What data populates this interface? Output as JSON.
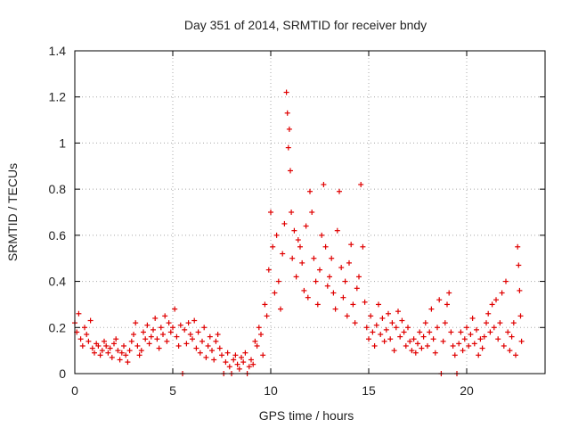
{
  "chart_data": {
    "type": "scatter",
    "title": "Day 351 of 2014, SRMTID for receiver bndy",
    "xlabel": "GPS time / hours",
    "ylabel": "SRMTID / TECUs",
    "xlim": [
      0,
      24
    ],
    "ylim": [
      0,
      1.4
    ],
    "xticks": [
      0,
      5,
      10,
      15,
      20
    ],
    "yticks": [
      0,
      0.2,
      0.4,
      0.6,
      0.8,
      1,
      1.2,
      1.4
    ],
    "xtick_labels": [
      "0",
      "5",
      "10",
      "15",
      "20"
    ],
    "ytick_labels": [
      "0",
      "0.2",
      "0.4",
      "0.6",
      "0.8",
      "1",
      "1.2",
      "1.4"
    ],
    "grid": true,
    "marker": "+",
    "color": "#e00000",
    "series": [
      {
        "name": "SRMTID",
        "points": [
          [
            0.0,
            0.22
          ],
          [
            0.1,
            0.18
          ],
          [
            0.2,
            0.26
          ],
          [
            0.3,
            0.15
          ],
          [
            0.4,
            0.12
          ],
          [
            0.5,
            0.2
          ],
          [
            0.6,
            0.17
          ],
          [
            0.7,
            0.14
          ],
          [
            0.8,
            0.23
          ],
          [
            0.9,
            0.11
          ],
          [
            1.0,
            0.09
          ],
          [
            1.1,
            0.13
          ],
          [
            1.2,
            0.12
          ],
          [
            1.3,
            0.08
          ],
          [
            1.4,
            0.1
          ],
          [
            1.5,
            0.14
          ],
          [
            1.6,
            0.12
          ],
          [
            1.7,
            0.09
          ],
          [
            1.8,
            0.11
          ],
          [
            1.9,
            0.07
          ],
          [
            2.0,
            0.13
          ],
          [
            2.1,
            0.15
          ],
          [
            2.2,
            0.1
          ],
          [
            2.3,
            0.06
          ],
          [
            2.4,
            0.09
          ],
          [
            2.5,
            0.12
          ],
          [
            2.6,
            0.08
          ],
          [
            2.7,
            0.05
          ],
          [
            2.8,
            0.1
          ],
          [
            2.9,
            0.14
          ],
          [
            3.0,
            0.17
          ],
          [
            3.1,
            0.22
          ],
          [
            3.2,
            0.12
          ],
          [
            3.3,
            0.08
          ],
          [
            3.4,
            0.1
          ],
          [
            3.5,
            0.18
          ],
          [
            3.6,
            0.15
          ],
          [
            3.7,
            0.21
          ],
          [
            3.8,
            0.13
          ],
          [
            3.9,
            0.16
          ],
          [
            4.0,
            0.19
          ],
          [
            4.1,
            0.24
          ],
          [
            4.2,
            0.15
          ],
          [
            4.3,
            0.11
          ],
          [
            4.4,
            0.2
          ],
          [
            4.5,
            0.17
          ],
          [
            4.6,
            0.25
          ],
          [
            4.7,
            0.14
          ],
          [
            4.8,
            0.22
          ],
          [
            4.9,
            0.18
          ],
          [
            5.0,
            0.2
          ],
          [
            5.1,
            0.28
          ],
          [
            5.2,
            0.16
          ],
          [
            5.3,
            0.12
          ],
          [
            5.4,
            0.21
          ],
          [
            5.5,
            0.0
          ],
          [
            5.6,
            0.19
          ],
          [
            5.7,
            0.13
          ],
          [
            5.8,
            0.22
          ],
          [
            5.9,
            0.17
          ],
          [
            6.0,
            0.15
          ],
          [
            6.1,
            0.23
          ],
          [
            6.2,
            0.11
          ],
          [
            6.3,
            0.18
          ],
          [
            6.4,
            0.09
          ],
          [
            6.5,
            0.14
          ],
          [
            6.6,
            0.2
          ],
          [
            6.7,
            0.07
          ],
          [
            6.8,
            0.12
          ],
          [
            6.9,
            0.16
          ],
          [
            7.0,
            0.1
          ],
          [
            7.1,
            0.06
          ],
          [
            7.2,
            0.14
          ],
          [
            7.3,
            0.17
          ],
          [
            7.4,
            0.11
          ],
          [
            7.5,
            0.08
          ],
          [
            7.6,
            0.0
          ],
          [
            7.7,
            0.05
          ],
          [
            7.8,
            0.09
          ],
          [
            7.9,
            0.03
          ],
          [
            8.0,
            0.0
          ],
          [
            8.1,
            0.06
          ],
          [
            8.2,
            0.08
          ],
          [
            8.3,
            0.04
          ],
          [
            8.4,
            0.02
          ],
          [
            8.5,
            0.07
          ],
          [
            8.6,
            0.05
          ],
          [
            8.7,
            0.09
          ],
          [
            8.8,
            0.0
          ],
          [
            8.9,
            0.03
          ],
          [
            9.0,
            0.06
          ],
          [
            9.1,
            0.04
          ],
          [
            9.2,
            0.14
          ],
          [
            9.3,
            0.12
          ],
          [
            9.4,
            0.2
          ],
          [
            9.5,
            0.17
          ],
          [
            9.6,
            0.08
          ],
          [
            9.7,
            0.3
          ],
          [
            9.8,
            0.25
          ],
          [
            9.9,
            0.45
          ],
          [
            10.0,
            0.7
          ],
          [
            10.1,
            0.55
          ],
          [
            10.2,
            0.35
          ],
          [
            10.3,
            0.6
          ],
          [
            10.4,
            0.4
          ],
          [
            10.5,
            0.28
          ],
          [
            10.6,
            0.52
          ],
          [
            10.7,
            0.65
          ],
          [
            10.8,
            1.22
          ],
          [
            10.85,
            1.13
          ],
          [
            10.9,
            0.98
          ],
          [
            10.95,
            1.06
          ],
          [
            11.0,
            0.88
          ],
          [
            11.05,
            0.7
          ],
          [
            11.1,
            0.5
          ],
          [
            11.2,
            0.62
          ],
          [
            11.3,
            0.42
          ],
          [
            11.4,
            0.58
          ],
          [
            11.5,
            0.55
          ],
          [
            11.6,
            0.48
          ],
          [
            11.7,
            0.36
          ],
          [
            11.8,
            0.64
          ],
          [
            11.9,
            0.33
          ],
          [
            12.0,
            0.79
          ],
          [
            12.1,
            0.7
          ],
          [
            12.2,
            0.5
          ],
          [
            12.3,
            0.4
          ],
          [
            12.4,
            0.3
          ],
          [
            12.5,
            0.45
          ],
          [
            12.6,
            0.6
          ],
          [
            12.7,
            0.82
          ],
          [
            12.8,
            0.55
          ],
          [
            12.9,
            0.38
          ],
          [
            13.0,
            0.42
          ],
          [
            13.1,
            0.5
          ],
          [
            13.2,
            0.35
          ],
          [
            13.3,
            0.28
          ],
          [
            13.4,
            0.62
          ],
          [
            13.5,
            0.79
          ],
          [
            13.6,
            0.46
          ],
          [
            13.7,
            0.33
          ],
          [
            13.8,
            0.4
          ],
          [
            13.9,
            0.25
          ],
          [
            14.0,
            0.48
          ],
          [
            14.1,
            0.56
          ],
          [
            14.2,
            0.3
          ],
          [
            14.3,
            0.22
          ],
          [
            14.4,
            0.37
          ],
          [
            14.5,
            0.42
          ],
          [
            14.6,
            0.82
          ],
          [
            14.7,
            0.55
          ],
          [
            14.8,
            0.31
          ],
          [
            14.9,
            0.2
          ],
          [
            15.0,
            0.15
          ],
          [
            15.1,
            0.25
          ],
          [
            15.2,
            0.18
          ],
          [
            15.3,
            0.12
          ],
          [
            15.4,
            0.21
          ],
          [
            15.5,
            0.3
          ],
          [
            15.6,
            0.17
          ],
          [
            15.7,
            0.24
          ],
          [
            15.8,
            0.14
          ],
          [
            15.9,
            0.19
          ],
          [
            16.0,
            0.26
          ],
          [
            16.1,
            0.15
          ],
          [
            16.2,
            0.22
          ],
          [
            16.3,
            0.1
          ],
          [
            16.4,
            0.2
          ],
          [
            16.5,
            0.27
          ],
          [
            16.6,
            0.16
          ],
          [
            16.7,
            0.23
          ],
          [
            16.8,
            0.18
          ],
          [
            16.9,
            0.12
          ],
          [
            17.0,
            0.2
          ],
          [
            17.1,
            0.14
          ],
          [
            17.2,
            0.1
          ],
          [
            17.3,
            0.15
          ],
          [
            17.4,
            0.09
          ],
          [
            17.5,
            0.13
          ],
          [
            17.6,
            0.18
          ],
          [
            17.7,
            0.11
          ],
          [
            17.8,
            0.16
          ],
          [
            17.9,
            0.22
          ],
          [
            18.0,
            0.12
          ],
          [
            18.1,
            0.18
          ],
          [
            18.2,
            0.28
          ],
          [
            18.3,
            0.15
          ],
          [
            18.4,
            0.09
          ],
          [
            18.5,
            0.2
          ],
          [
            18.6,
            0.32
          ],
          [
            18.7,
            0.0
          ],
          [
            18.8,
            0.14
          ],
          [
            18.9,
            0.22
          ],
          [
            19.0,
            0.3
          ],
          [
            19.1,
            0.35
          ],
          [
            19.2,
            0.18
          ],
          [
            19.3,
            0.12
          ],
          [
            19.4,
            0.08
          ],
          [
            19.5,
            0.0
          ],
          [
            19.6,
            0.13
          ],
          [
            19.7,
            0.18
          ],
          [
            19.8,
            0.1
          ],
          [
            19.9,
            0.15
          ],
          [
            20.0,
            0.2
          ],
          [
            20.1,
            0.12
          ],
          [
            20.2,
            0.17
          ],
          [
            20.3,
            0.24
          ],
          [
            20.4,
            0.13
          ],
          [
            20.5,
            0.19
          ],
          [
            20.6,
            0.08
          ],
          [
            20.7,
            0.15
          ],
          [
            20.8,
            0.11
          ],
          [
            20.9,
            0.16
          ],
          [
            21.0,
            0.22
          ],
          [
            21.1,
            0.26
          ],
          [
            21.2,
            0.18
          ],
          [
            21.3,
            0.3
          ],
          [
            21.4,
            0.2
          ],
          [
            21.5,
            0.32
          ],
          [
            21.6,
            0.15
          ],
          [
            21.7,
            0.22
          ],
          [
            21.8,
            0.35
          ],
          [
            21.9,
            0.12
          ],
          [
            22.0,
            0.4
          ],
          [
            22.1,
            0.18
          ],
          [
            22.2,
            0.1
          ],
          [
            22.3,
            0.16
          ],
          [
            22.4,
            0.22
          ],
          [
            22.5,
            0.08
          ],
          [
            22.6,
            0.55
          ],
          [
            22.65,
            0.47
          ],
          [
            22.7,
            0.36
          ],
          [
            22.75,
            0.25
          ],
          [
            22.8,
            0.14
          ]
        ]
      }
    ]
  }
}
